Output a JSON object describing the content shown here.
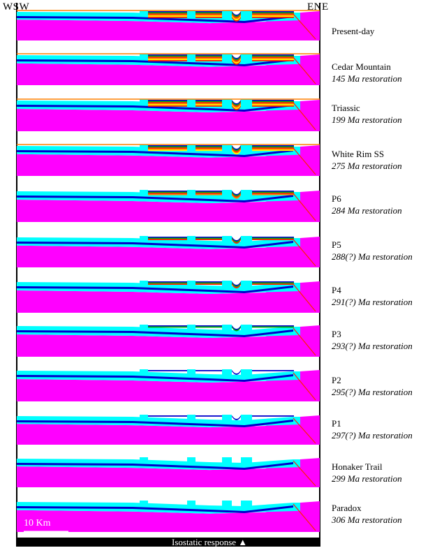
{
  "orientation": {
    "left": "WSW",
    "right": "ENE"
  },
  "panels": [
    {
      "name": "Present-day",
      "age": ""
    },
    {
      "name": "Cedar Mountain",
      "age": "145 Ma restoration"
    },
    {
      "name": "Triassic",
      "age": "199 Ma restoration"
    },
    {
      "name": "White Rim SS",
      "age": "275 Ma restoration"
    },
    {
      "name": "P6",
      "age": "284 Ma restoration"
    },
    {
      "name": "P5",
      "age": "288(?) Ma restoration"
    },
    {
      "name": "P4",
      "age": "291(?) Ma restoration"
    },
    {
      "name": "P3",
      "age": "293(?) Ma restoration"
    },
    {
      "name": "P2",
      "age": "295(?) Ma restoration"
    },
    {
      "name": "P1",
      "age": "297(?) Ma restoration"
    },
    {
      "name": "Honaker Trail",
      "age": "299 Ma restoration"
    },
    {
      "name": "Paradox",
      "age": "306 Ma restoration"
    }
  ],
  "scale_bar": {
    "label": "10 Km"
  },
  "isostatic": {
    "label": "Isostatic response ▲"
  },
  "colors": {
    "basement": "#ff00ff",
    "salt": "#00ffff",
    "deep_blue": "#0000cc",
    "green": "#00b000",
    "yellow": "#ffff00",
    "red": "#ff2000",
    "orange": "#ff8000",
    "frame": "#000000"
  }
}
